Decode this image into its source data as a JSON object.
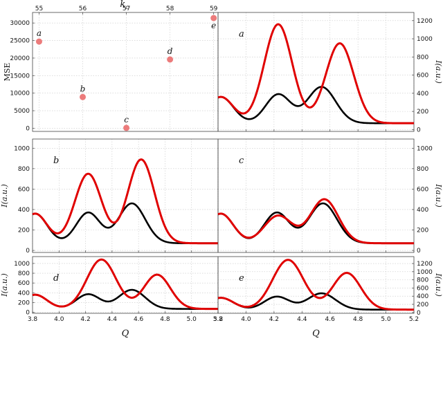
{
  "chart_data": [
    {
      "id": "mse",
      "type": "scatter",
      "title": "",
      "xlabel": "k",
      "xlabel_sub": "c",
      "ylabel": "MSE",
      "xlim": [
        54.85,
        59.1
      ],
      "ylim": [
        -900,
        33000
      ],
      "xticks": [
        55,
        56,
        57,
        58,
        59
      ],
      "yticks": [
        0,
        5000,
        10000,
        15000,
        20000,
        25000,
        30000
      ],
      "grid": true,
      "points": [
        {
          "x": 55,
          "y": 24700,
          "label": "a"
        },
        {
          "x": 56,
          "y": 8900,
          "label": "b"
        },
        {
          "x": 57,
          "y": 100,
          "label": "c"
        },
        {
          "x": 58,
          "y": 19600,
          "label": "d"
        },
        {
          "x": 59,
          "y": 31400,
          "label": "e"
        }
      ],
      "color": "#ec7b7b"
    },
    {
      "id": "a",
      "type": "line",
      "panel_label": "a",
      "xlabel": "",
      "ylabel": "I(a.u.)",
      "yaxis_side": "right",
      "xlim": [
        3.8,
        5.2
      ],
      "ylim": [
        -20,
        1290
      ],
      "yticks": [
        0,
        200,
        400,
        600,
        800,
        1000,
        1200
      ],
      "grid": true,
      "series": [
        {
          "color": "#000000",
          "base": 70,
          "peaks": [
            [
              3.82,
              290,
              0.09
            ],
            [
              4.23,
              318,
              0.09
            ],
            [
              4.54,
              400,
              0.1
            ]
          ]
        },
        {
          "color": "#e00000",
          "base": 70,
          "peaks": [
            [
              3.82,
              290,
              0.09
            ],
            [
              4.23,
              1090,
              0.1
            ],
            [
              4.67,
              880,
              0.1
            ]
          ]
        }
      ]
    },
    {
      "id": "b",
      "type": "line",
      "panel_label": "b",
      "xlabel": "",
      "ylabel": "I(a.u.)",
      "yaxis_side": "left",
      "xlim": [
        3.8,
        5.2
      ],
      "ylim": [
        -20,
        1090
      ],
      "yticks": [
        0,
        200,
        400,
        600,
        800,
        1000
      ],
      "grid": true,
      "series": [
        {
          "color": "#000000",
          "base": 70,
          "peaks": [
            [
              3.82,
              290,
              0.09
            ],
            [
              4.22,
              300,
              0.09
            ],
            [
              4.55,
              390,
              0.1
            ]
          ]
        },
        {
          "color": "#e00000",
          "base": 70,
          "peaks": [
            [
              3.82,
              290,
              0.09
            ],
            [
              4.22,
              680,
              0.1
            ],
            [
              4.62,
              820,
              0.1
            ]
          ]
        }
      ]
    },
    {
      "id": "c",
      "type": "line",
      "panel_label": "c",
      "xlabel": "",
      "ylabel": "I(a.u.)",
      "yaxis_side": "right",
      "xlim": [
        3.8,
        5.2
      ],
      "ylim": [
        -20,
        1090
      ],
      "yticks": [
        0,
        200,
        400,
        600,
        800,
        1000
      ],
      "grid": true,
      "series": [
        {
          "color": "#000000",
          "base": 70,
          "peaks": [
            [
              3.82,
              290,
              0.09
            ],
            [
              4.22,
              300,
              0.09
            ],
            [
              4.55,
              390,
              0.1
            ]
          ]
        },
        {
          "color": "#e00000",
          "base": 70,
          "peaks": [
            [
              3.82,
              290,
              0.09
            ],
            [
              4.23,
              270,
              0.1
            ],
            [
              4.56,
              430,
              0.1
            ]
          ]
        }
      ]
    },
    {
      "id": "d",
      "type": "line",
      "panel_label": "d",
      "xlabel": "Q",
      "ylabel": "I(a.u.)",
      "yaxis_side": "left",
      "xlim": [
        3.8,
        5.2
      ],
      "ylim": [
        -20,
        1140
      ],
      "xticks": [
        3.8,
        4.0,
        4.2,
        4.4,
        4.6,
        4.8,
        5.0,
        5.2
      ],
      "yticks": [
        0,
        200,
        400,
        600,
        800,
        1000
      ],
      "grid": true,
      "series": [
        {
          "color": "#000000",
          "base": 70,
          "peaks": [
            [
              3.82,
              290,
              0.09
            ],
            [
              4.22,
              300,
              0.09
            ],
            [
              4.55,
              390,
              0.1
            ]
          ]
        },
        {
          "color": "#e00000",
          "base": 70,
          "peaks": [
            [
              3.82,
              290,
              0.09
            ],
            [
              4.32,
              1010,
              0.11
            ],
            [
              4.74,
              700,
              0.1
            ]
          ]
        }
      ]
    },
    {
      "id": "e",
      "type": "line",
      "panel_label": "e",
      "xlabel": "Q",
      "ylabel": "I(a.u.)",
      "yaxis_side": "right",
      "xlim": [
        3.8,
        5.2
      ],
      "ylim": [
        -20,
        1370
      ],
      "xticks": [
        3.8,
        4.0,
        4.2,
        4.4,
        4.6,
        4.8,
        5.0,
        5.2
      ],
      "yticks": [
        0,
        200,
        400,
        600,
        800,
        1000,
        1200
      ],
      "grid": true,
      "series": [
        {
          "color": "#000000",
          "base": 70,
          "peaks": [
            [
              3.82,
              290,
              0.09
            ],
            [
              4.22,
              318,
              0.09
            ],
            [
              4.54,
              400,
              0.1
            ]
          ]
        },
        {
          "color": "#e00000",
          "base": 70,
          "peaks": [
            [
              3.82,
              290,
              0.09
            ],
            [
              4.3,
              1220,
              0.11
            ],
            [
              4.72,
              900,
              0.1
            ]
          ]
        }
      ]
    }
  ]
}
